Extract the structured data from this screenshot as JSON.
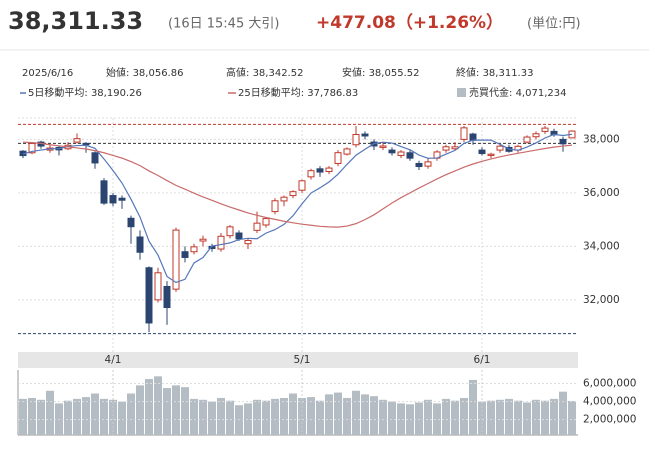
{
  "header": {
    "price": "38,311.33",
    "time": "(16日 15:45 大引)",
    "change": "+477.08（+1.26%）",
    "unit": "(単位:円)"
  },
  "info": {
    "date": "2025/6/16",
    "labels": [
      "始値:",
      "高値:",
      "安値:",
      "終値:"
    ],
    "values": [
      "38,056.86",
      "38,342.52",
      "38,055.52",
      "38,311.33"
    ]
  },
  "chart_data": {
    "type": "candlestick",
    "categories": [
      null,
      null,
      null,
      null,
      null,
      null,
      null,
      null,
      null,
      null,
      "4/1",
      null,
      null,
      null,
      null,
      null,
      null,
      null,
      null,
      null,
      null,
      null,
      null,
      null,
      null,
      null,
      null,
      null,
      null,
      null,
      null,
      "5/1",
      null,
      null,
      null,
      null,
      null,
      null,
      null,
      null,
      null,
      null,
      null,
      null,
      null,
      null,
      null,
      null,
      null,
      null,
      null,
      "6/1",
      null,
      null,
      null,
      null,
      null,
      null,
      null,
      null,
      null,
      null
    ],
    "open": [
      37560,
      37500,
      37900,
      37600,
      37700,
      37650,
      37900,
      37850,
      37500,
      36450,
      35900,
      35800,
      35050,
      34350,
      33200,
      32000,
      32500,
      32400,
      33800,
      33800,
      34200,
      34000,
      33900,
      34400,
      34500,
      34100,
      34600,
      34800,
      35300,
      35700,
      35900,
      36100,
      36600,
      36900,
      36800,
      37100,
      37450,
      37800,
      38200,
      37900,
      37700,
      37600,
      37400,
      37500,
      37100,
      37000,
      37300,
      37600,
      37650,
      38000,
      38200,
      37600,
      37400,
      37600,
      37700,
      37600,
      37900,
      38100,
      38300,
      38300,
      38000,
      38056.86
    ],
    "high": [
      37600,
      37900,
      37950,
      37800,
      37750,
      37900,
      38220,
      37900,
      37550,
      36550,
      36000,
      35900,
      35150,
      34600,
      33250,
      33200,
      32700,
      34700,
      34000,
      34100,
      34400,
      34100,
      34500,
      34800,
      34600,
      34300,
      35300,
      35100,
      35800,
      35900,
      36100,
      36500,
      36900,
      37000,
      37000,
      37600,
      37700,
      38500,
      38300,
      38000,
      37900,
      37700,
      37600,
      37600,
      37200,
      37300,
      37600,
      37800,
      37900,
      38500,
      38250,
      37700,
      37500,
      37800,
      37800,
      37800,
      38150,
      38300,
      38500,
      38400,
      38100,
      38342.52
    ],
    "low": [
      37300,
      37450,
      37650,
      37500,
      37400,
      37600,
      37850,
      37500,
      36900,
      35550,
      35500,
      35400,
      34100,
      33500,
      30792,
      31900,
      31065,
      32300,
      33400,
      33700,
      34000,
      33800,
      33800,
      34300,
      34200,
      33900,
      34500,
      34700,
      35200,
      35500,
      35800,
      36000,
      36500,
      36600,
      36700,
      37000,
      37400,
      37700,
      38000,
      37600,
      37600,
      37400,
      37300,
      37200,
      36855,
      36900,
      37200,
      37500,
      37600,
      37900,
      37800,
      37400,
      37300,
      37500,
      37500,
      37500,
      37850,
      38000,
      38200,
      38100,
      37540,
      38055.52
    ],
    "close": [
      37396,
      37845,
      37751,
      37677,
      37608,
      37780,
      38027,
      37799,
      37120,
      35617,
      35624,
      35725,
      34735,
      33780,
      31136,
      33012,
      31714,
      34609,
      33585,
      33982,
      34267,
      33920,
      34377,
      34730,
      34279,
      34220,
      34868,
      35039,
      35705,
      35839,
      36045,
      36452,
      36830,
      36779,
      36928,
      37503,
      37644,
      38183,
      38128,
      37755,
      37753,
      37498,
      37529,
      37299,
      36985,
      37160,
      37531,
      37724,
      37722,
      38432,
      37965,
      37470,
      37446,
      37747,
      37554,
      37741,
      38088,
      38211,
      38421,
      38173,
      37834,
      38311.33
    ],
    "up_color": "#c0392b",
    "down_color": "#2b4570",
    "series": [
      {
        "name": "5日移動平均",
        "color": "#5577bb",
        "value_label": "38,190.26",
        "values": [
          37450,
          37550,
          37600,
          37650,
          37655,
          37732,
          37769,
          37778,
          37667,
          37269,
          36837,
          36369,
          35764,
          35096,
          34193,
          33677,
          32875,
          32650,
          32769,
          33380,
          33583,
          34011,
          34067,
          34130,
          34255,
          34301,
          34285,
          34495,
          34627,
          34822,
          35146,
          35590,
          35994,
          36189,
          36408,
          36699,
          37065,
          37408,
          37633,
          37843,
          37893,
          37863,
          37733,
          37609,
          37414,
          37294,
          37301,
          37448,
          37588,
          37849,
          37975,
          37974,
          37973,
          37816,
          37637,
          37592,
          37715,
          37868,
          38052,
          38186,
          38145,
          38190.26
        ]
      },
      {
        "name": "25日移動平均",
        "color": "#c96b6b",
        "value_label": "37,786.83",
        "values": [
          37900,
          37880,
          37850,
          37800,
          37760,
          37720,
          37680,
          37640,
          37580,
          37500,
          37400,
          37300,
          37170,
          37020,
          36820,
          36650,
          36460,
          36280,
          36140,
          35990,
          35850,
          35720,
          35590,
          35470,
          35360,
          35250,
          35160,
          35080,
          35010,
          34940,
          34880,
          34830,
          34790,
          34750,
          34730,
          34720,
          34760,
          34850,
          35000,
          35180,
          35400,
          35620,
          35820,
          36000,
          36180,
          36350,
          36520,
          36680,
          36820,
          36960,
          37080,
          37180,
          37270,
          37350,
          37420,
          37480,
          37540,
          37600,
          37660,
          37710,
          37750,
          37786.83
        ]
      }
    ],
    "ylim": [
      30050,
      38800
    ],
    "yticks": [
      {
        "value": 32000,
        "label": "32,000"
      },
      {
        "value": 34000,
        "label": "34,000"
      },
      {
        "value": 36000,
        "label": "36,000"
      },
      {
        "value": 38000,
        "label": "38,000"
      }
    ],
    "grid": true,
    "reference_lines": [
      {
        "value": 38562,
        "color": "#c0392b"
      },
      {
        "value": 37850,
        "color": "#333333"
      },
      {
        "value": 30735,
        "color": "#2b4570"
      }
    ],
    "volume": {
      "name": "売買代金",
      "color": "#b4bcc4",
      "value_label": "4,071,234",
      "values": [
        4300000,
        4400000,
        4200000,
        5200000,
        3800000,
        4100000,
        4300000,
        4500000,
        4900000,
        4300000,
        4200000,
        4000000,
        4900000,
        5800000,
        6500000,
        6800000,
        5500000,
        5800000,
        5600000,
        4300000,
        4200000,
        4000000,
        4400000,
        4100000,
        3600000,
        3800000,
        4200000,
        4100000,
        4300000,
        4400000,
        4900000,
        4400000,
        4500000,
        4100000,
        4800000,
        5000000,
        4400000,
        5200000,
        4800000,
        4600000,
        4200000,
        4000000,
        3800000,
        3700000,
        3900000,
        4200000,
        3800000,
        4300000,
        4100000,
        4400000,
        6400000,
        4000000,
        4100000,
        4200000,
        4300000,
        4100000,
        3900000,
        4200000,
        4100000,
        4300000,
        5100000,
        4071234
      ],
      "ylim": [
        300000,
        7500000
      ],
      "yticks": [
        {
          "value": 2000000,
          "label": "2,000,000"
        },
        {
          "value": 4000000,
          "label": "4,000,000"
        },
        {
          "value": 6000000,
          "label": "6,000,000"
        }
      ]
    }
  }
}
